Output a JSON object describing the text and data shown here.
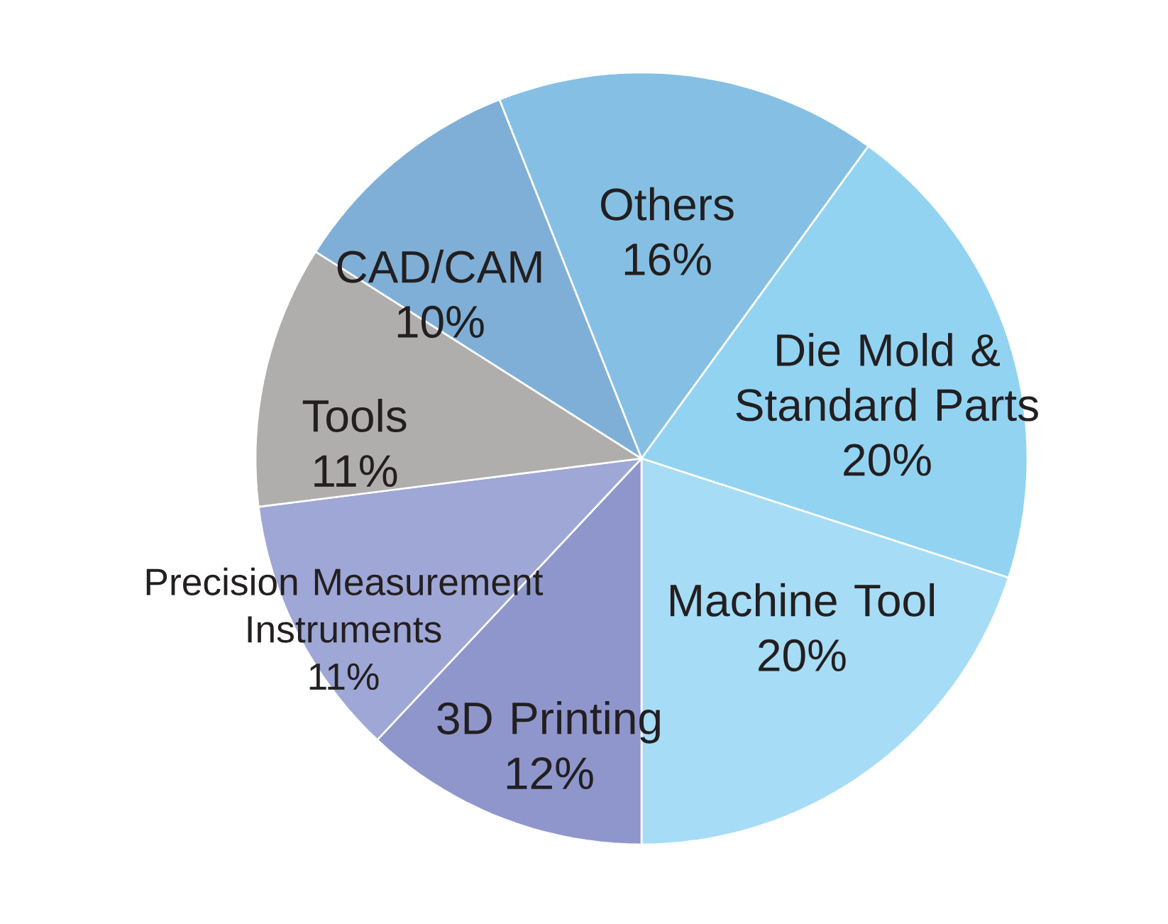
{
  "chart_data": {
    "type": "pie",
    "categories": [
      "Others",
      "Die Mold & Standard Parts",
      "Machine Tool",
      "3D Printing",
      "Precision Measurement Instruments",
      "Tools",
      "CAD/CAM"
    ],
    "values": [
      16,
      20,
      20,
      12,
      11,
      11,
      10
    ],
    "value_labels": [
      "16%",
      "20%",
      "20%",
      "12%",
      "11%",
      "11%",
      "10%"
    ],
    "colors": [
      "#85c0e4",
      "#92d3f2",
      "#a6dcf6",
      "#8e96cc",
      "#9ea7d6",
      "#b0adad",
      "#7fafd6"
    ]
  }
}
